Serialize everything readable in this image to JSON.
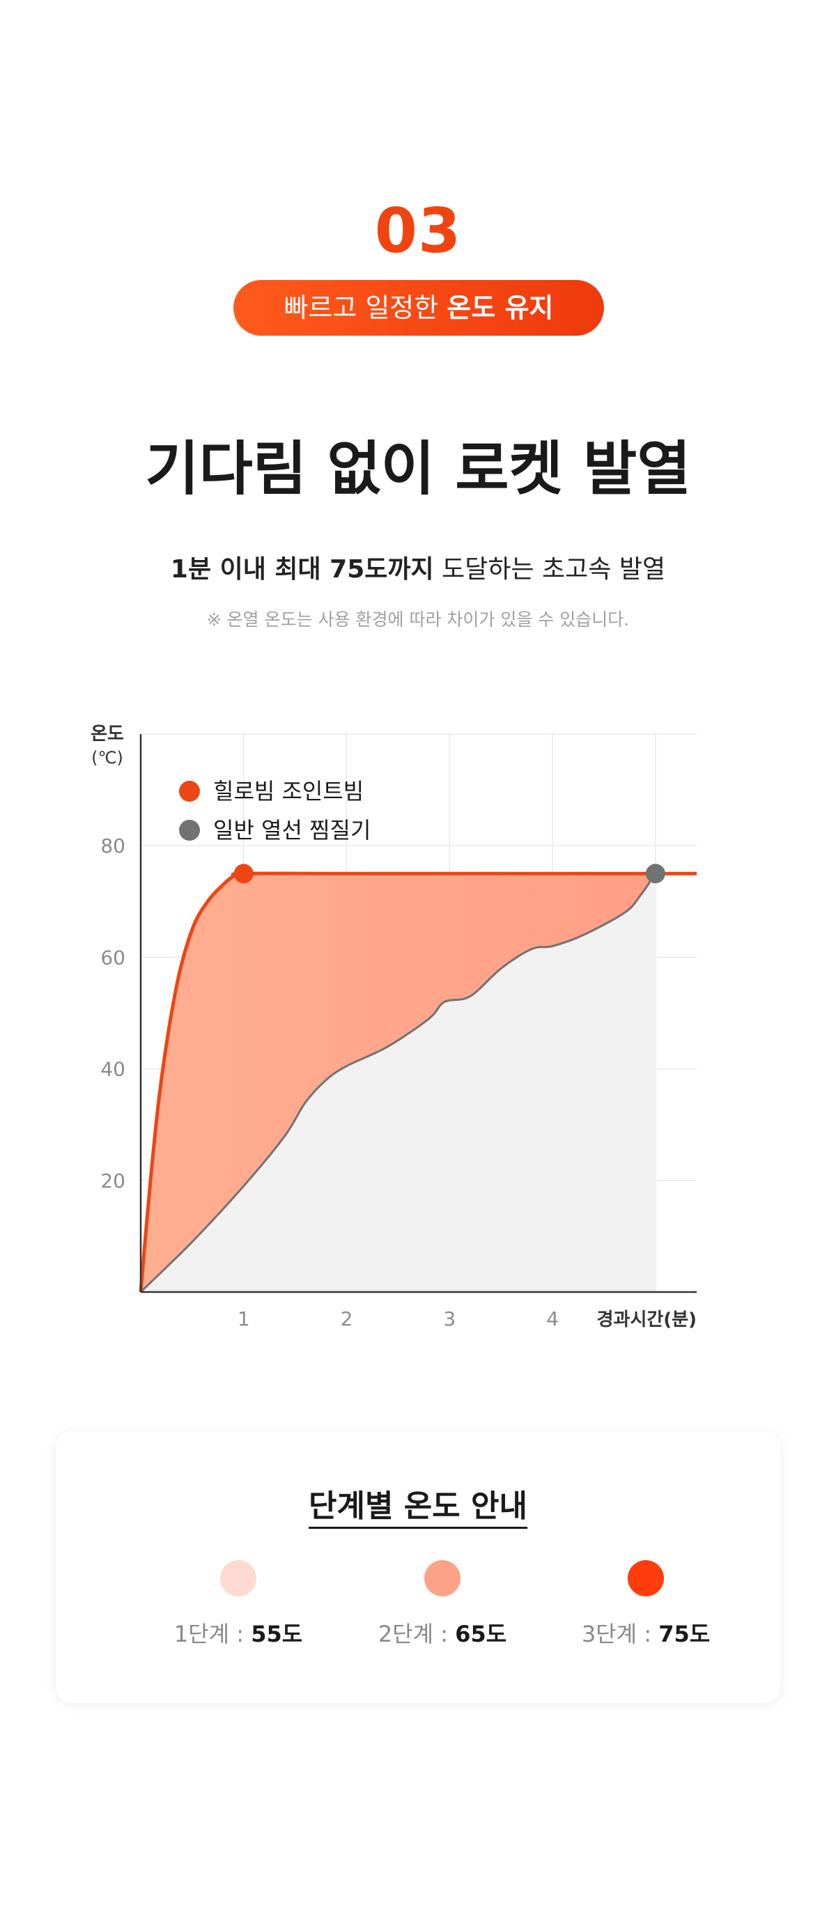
{
  "section_number": "03",
  "pill": {
    "text_regular": "빠르고 일정한",
    "text_bold": "온도 유지"
  },
  "headline": "기다림 없이 로켓 발열",
  "subheadline": {
    "bold": "1분 이내 최대 75도까지",
    "regular": "도달하는 초고속 발열"
  },
  "note": "※ 온열 온도는 사용 환경에 따라 차이가 있을 수 있습니다.",
  "colors": {
    "accent": "#f04410",
    "pill_start": "#ff5a1d",
    "pill_end": "#ee3a0c",
    "series_product": "#ee4512",
    "series_general": "#727272",
    "fill_product": "#ffa98a",
    "fill_general": "#f1f1f1",
    "stage1": "#fddbd0",
    "stage2": "#fca287",
    "stage3": "#ff3c0c"
  },
  "chart_data": {
    "type": "area",
    "ylabel": "온도\n(℃)",
    "xlabel": "경과시간(분)",
    "xlim": [
      0,
      5.4
    ],
    "ylim": [
      0,
      100
    ],
    "yticks": [
      20,
      40,
      60,
      80
    ],
    "xticks": [
      1,
      2,
      3,
      4
    ],
    "grid": true,
    "legend_position": "top-left",
    "series": [
      {
        "name": "힐로빔 조인트빔",
        "color": "#ee4512",
        "x": [
          0,
          0.1,
          0.2,
          0.35,
          0.5,
          0.65,
          0.8,
          0.9,
          1.0,
          2.0,
          3.0,
          4.0,
          5.0,
          5.4
        ],
        "y": [
          0,
          21,
          38,
          55,
          65,
          70,
          73,
          74.5,
          75,
          75,
          75,
          75,
          75,
          75
        ],
        "marker": {
          "x": 1.0,
          "y": 75
        }
      },
      {
        "name": "일반 열선 찜질기",
        "color": "#727272",
        "x": [
          0,
          0.5,
          1.0,
          1.4,
          1.6,
          1.8,
          2.0,
          2.4,
          2.8,
          2.95,
          3.2,
          3.5,
          3.8,
          4.0,
          4.3,
          4.7,
          4.85,
          5.0
        ],
        "y": [
          0,
          9,
          19,
          28,
          34,
          38,
          40.5,
          44,
          49,
          52,
          53,
          58,
          61.5,
          62,
          64,
          68,
          71,
          75
        ],
        "marker": {
          "x": 5.0,
          "y": 75
        }
      }
    ]
  },
  "stages_card": {
    "title": "단계별 온도 안내",
    "stages": [
      {
        "step": "1단계",
        "sep": " : ",
        "temp": "55도",
        "color": "#fddbd0"
      },
      {
        "step": "2단계",
        "sep": " : ",
        "temp": "65도",
        "color": "#fca287"
      },
      {
        "step": "3단계",
        "sep": " : ",
        "temp": "75도",
        "color": "#ff3c0c"
      }
    ]
  }
}
